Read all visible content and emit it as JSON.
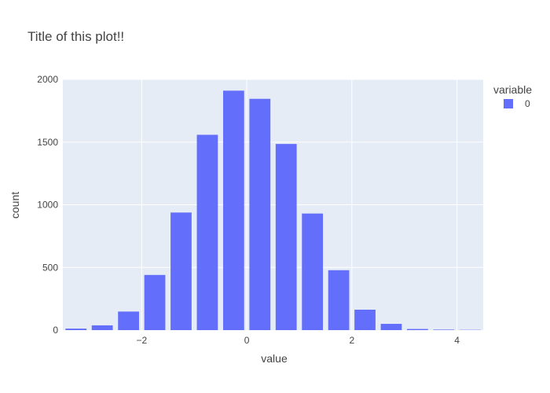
{
  "chart_data": {
    "type": "bar",
    "title": "Title of this plot!!",
    "xlabel": "value",
    "ylabel": "count",
    "xlim": [
      -3.5,
      4.5
    ],
    "ylim": [
      0,
      2000
    ],
    "x_ticks": [
      -2,
      0,
      2,
      4
    ],
    "x_tick_labels": [
      "−2",
      "0",
      "2",
      "4"
    ],
    "y_ticks": [
      0,
      500,
      1000,
      1500,
      2000
    ],
    "y_tick_labels": [
      "0",
      "500",
      "1000",
      "1500",
      "2000"
    ],
    "bin_width": 0.5,
    "grid": true,
    "legend": {
      "title": "variable",
      "placement": "right",
      "entries": [
        "0"
      ]
    },
    "colors": {
      "bar": "#636efa",
      "plot_bg": "#e5ecf6",
      "grid": "#ffffff"
    },
    "series": [
      {
        "name": "0",
        "x": [
          -3.25,
          -2.75,
          -2.25,
          -1.75,
          -1.25,
          -0.75,
          -0.25,
          0.25,
          0.75,
          1.25,
          1.75,
          2.25,
          2.75,
          3.25,
          3.75,
          4.25
        ],
        "values": [
          12,
          38,
          148,
          440,
          938,
          1558,
          1910,
          1845,
          1485,
          930,
          478,
          163,
          50,
          9,
          4,
          2
        ]
      }
    ]
  }
}
